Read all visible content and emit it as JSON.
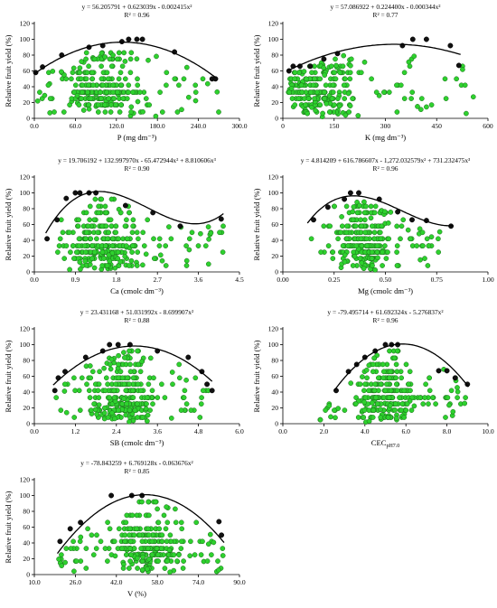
{
  "chart_data": [
    {
      "type": "scatter",
      "equation": "y = 56.205791 + 0.623039x - 0.002415x²",
      "r2": "R² = 0.96",
      "xlabel": "P (mg dm⁻³)",
      "ylabel": "Relative fruit yield (%)",
      "xlim": [
        0,
        300
      ],
      "ylim": [
        0,
        120
      ],
      "xticks": [
        "0.0",
        "60.0",
        "120.0",
        "180.0",
        "240.0",
        "300.0"
      ],
      "yticks": [
        "0",
        "20",
        "40",
        "60",
        "80",
        "100",
        "120"
      ],
      "xtick_values": [
        0,
        60,
        120,
        180,
        240,
        300
      ],
      "ytick_values": [
        0,
        20,
        40,
        60,
        80,
        100,
        120
      ],
      "coef": [
        56.205791,
        0.623039,
        -0.002415
      ],
      "curve_range": [
        0,
        265
      ],
      "green_range": [
        3,
        270
      ],
      "green_center": 95,
      "green_n": 260,
      "seed": 11,
      "boundary": [
        [
          2,
          58
        ],
        [
          12,
          65
        ],
        [
          40,
          80
        ],
        [
          80,
          90
        ],
        [
          100,
          92
        ],
        [
          128,
          97
        ],
        [
          138,
          100
        ],
        [
          150,
          100
        ],
        [
          158,
          100
        ],
        [
          205,
          84
        ],
        [
          260,
          50
        ],
        [
          265,
          50
        ]
      ]
    },
    {
      "type": "scatter",
      "equation": "y = 57.086922 + 0.224400x - 0.000344x²",
      "r2": "R² = 0.77",
      "xlabel": "K (mg dm⁻³)",
      "ylabel": "Relative fruit yield (%)",
      "xlim": [
        0,
        600
      ],
      "ylim": [
        0,
        120
      ],
      "xticks": [
        "0",
        "150",
        "300",
        "450",
        "600"
      ],
      "yticks": [
        "0",
        "20",
        "40",
        "60",
        "80",
        "100",
        "120"
      ],
      "xtick_values": [
        0,
        150,
        300,
        450,
        600
      ],
      "ytick_values": [
        0,
        20,
        40,
        60,
        80,
        100,
        120
      ],
      "coef": [
        57.086922,
        0.2244,
        -0.000344
      ],
      "curve_range": [
        15,
        520
      ],
      "green_range": [
        15,
        560
      ],
      "green_center": 110,
      "green_n": 250,
      "seed": 23,
      "boundary": [
        [
          18,
          60
        ],
        [
          30,
          66
        ],
        [
          50,
          66
        ],
        [
          80,
          66
        ],
        [
          120,
          75
        ],
        [
          160,
          82
        ],
        [
          350,
          92
        ],
        [
          380,
          100
        ],
        [
          420,
          100
        ],
        [
          490,
          92
        ],
        [
          515,
          67
        ]
      ]
    },
    {
      "type": "scatter",
      "equation": "y = 19.706192 + 132.997970x - 65.472944x² + 8.810606x³",
      "r2": "R² = 0.90",
      "xlabel": "Ca (cmolc dm⁻³)",
      "ylabel": "Relative fruit yield (%)",
      "xlim": [
        0,
        4.5
      ],
      "ylim": [
        0,
        120
      ],
      "xticks": [
        "0.0",
        "0.9",
        "1.8",
        "2.7",
        "3.6",
        "4.5"
      ],
      "yticks": [
        "0",
        "20",
        "40",
        "60",
        "80",
        "100",
        "120"
      ],
      "xtick_values": [
        0,
        0.9,
        1.8,
        2.7,
        3.6,
        4.5
      ],
      "ytick_values": [
        0,
        20,
        40,
        60,
        80,
        100,
        120
      ],
      "coef": [
        19.706192,
        132.99797,
        -65.472944,
        8.810606
      ],
      "curve_range": [
        0.25,
        4.15
      ],
      "green_range": [
        0.4,
        4.2
      ],
      "green_center": 1.5,
      "green_n": 290,
      "seed": 37,
      "boundary": [
        [
          0.28,
          42
        ],
        [
          0.5,
          66
        ],
        [
          0.7,
          93
        ],
        [
          0.9,
          100
        ],
        [
          1.0,
          100
        ],
        [
          1.2,
          100
        ],
        [
          1.35,
          100
        ],
        [
          2.0,
          84
        ],
        [
          2.6,
          75
        ],
        [
          3.2,
          58
        ],
        [
          4.1,
          67
        ]
      ]
    },
    {
      "type": "scatter",
      "equation": "y = 4.814209 + 616.786607x - 1,272.032579x² + 731.232475x³",
      "r2": "R² = 0.96",
      "xlabel": "Mg (cmolc dm⁻³)",
      "ylabel": "Relative fruit yield (%)",
      "xlim": [
        0,
        1.0
      ],
      "ylim": [
        0,
        120
      ],
      "xticks": [
        "0.00",
        "0.25",
        "0.50",
        "0.75",
        "1.00"
      ],
      "yticks": [
        "0",
        "20",
        "40",
        "60",
        "80",
        "100",
        "120"
      ],
      "xtick_values": [
        0,
        0.25,
        0.5,
        0.75,
        1.0
      ],
      "ytick_values": [
        0,
        20,
        40,
        60,
        80,
        100,
        120
      ],
      "coef": [
        4.814209,
        616.786607,
        -1272.032579,
        731.232475
      ],
      "curve_range": [
        0.12,
        0.83
      ],
      "green_range": [
        0.12,
        0.82
      ],
      "green_center": 0.4,
      "green_n": 280,
      "seed": 53,
      "boundary": [
        [
          0.15,
          66
        ],
        [
          0.22,
          82
        ],
        [
          0.3,
          92
        ],
        [
          0.33,
          100
        ],
        [
          0.37,
          100
        ],
        [
          0.47,
          92
        ],
        [
          0.56,
          76
        ],
        [
          0.63,
          66
        ],
        [
          0.7,
          65
        ],
        [
          0.82,
          58
        ]
      ]
    },
    {
      "type": "scatter",
      "equation": "y = 23.431168 + 51.031992x - 8.699907x²",
      "r2": "R² = 0.88",
      "xlabel": "SB (cmolc dm⁻³)",
      "ylabel": "Relative fruit yield (%)",
      "xlim": [
        0,
        6.0
      ],
      "ylim": [
        0,
        120
      ],
      "xticks": [
        "0.0",
        "1.2",
        "2.4",
        "3.6",
        "4.8",
        "6.0"
      ],
      "yticks": [
        "0",
        "20",
        "40",
        "60",
        "80",
        "100",
        "120"
      ],
      "xtick_values": [
        0,
        1.2,
        2.4,
        3.6,
        4.8,
        6.0
      ],
      "ytick_values": [
        0,
        20,
        40,
        60,
        80,
        100,
        120
      ],
      "coef": [
        23.431168,
        51.031992,
        -8.699907
      ],
      "curve_range": [
        0.55,
        5.2
      ],
      "green_range": [
        0.6,
        5.1
      ],
      "green_center": 2.6,
      "green_n": 290,
      "seed": 71,
      "boundary": [
        [
          0.6,
          42
        ],
        [
          0.7,
          58
        ],
        [
          0.9,
          66
        ],
        [
          1.5,
          84
        ],
        [
          2.0,
          92
        ],
        [
          2.2,
          100
        ],
        [
          2.45,
          100
        ],
        [
          2.8,
          100
        ],
        [
          3.6,
          92
        ],
        [
          4.5,
          84
        ],
        [
          4.9,
          66
        ],
        [
          5.05,
          50
        ],
        [
          5.2,
          42
        ]
      ]
    },
    {
      "type": "scatter",
      "equation": "y = -79.495714 + 61.692324x - 5.276837x²",
      "r2": "R² = 0.96",
      "xlabel": "CEC",
      "xlabel_sub": "pH7.0",
      "ylabel": "Relative fruit yield (%)",
      "xlim": [
        0,
        10.0
      ],
      "ylim": [
        0,
        120
      ],
      "xticks": [
        "0.0",
        "2.0",
        "4.0",
        "6.0",
        "8.0",
        "10.0"
      ],
      "yticks": [
        "0",
        "20",
        "40",
        "60",
        "80",
        "100",
        "120"
      ],
      "xtick_values": [
        0,
        2,
        4,
        6,
        8,
        10
      ],
      "ytick_values": [
        0,
        20,
        40,
        60,
        80,
        100,
        120
      ],
      "coef": [
        -79.495714,
        61.692324,
        -5.276837
      ],
      "curve_range": [
        2.5,
        9.05
      ],
      "green_range": [
        1.8,
        9.0
      ],
      "green_center": 5.0,
      "green_n": 270,
      "seed": 89,
      "boundary": [
        [
          2.6,
          42
        ],
        [
          3.2,
          66
        ],
        [
          3.6,
          75
        ],
        [
          4.0,
          84
        ],
        [
          4.5,
          92
        ],
        [
          5.0,
          100
        ],
        [
          5.3,
          100
        ],
        [
          5.6,
          100
        ],
        [
          7.6,
          67
        ],
        [
          8.0,
          67
        ],
        [
          8.4,
          58
        ],
        [
          9.0,
          50
        ]
      ]
    },
    {
      "type": "scatter",
      "equation": "y = -78.843259 + 6.769128x - 0.063676x²",
      "r2": "R² = 0.85",
      "xlabel": "V (%)",
      "ylabel": "Relative fruit yield (%)",
      "xlim": [
        10,
        90
      ],
      "ylim": [
        0,
        120
      ],
      "xticks": [
        "10.0",
        "26.0",
        "42.0",
        "58.0",
        "74.0",
        "90.0"
      ],
      "yticks": [
        "0",
        "20",
        "40",
        "60",
        "80",
        "100",
        "120"
      ],
      "xtick_values": [
        10,
        26,
        42,
        58,
        74,
        90
      ],
      "ytick_values": [
        0,
        20,
        40,
        60,
        80,
        100,
        120
      ],
      "coef": [
        -78.843259,
        6.769128,
        -0.063676
      ],
      "curve_range": [
        19,
        84
      ],
      "green_range": [
        18,
        84
      ],
      "green_center": 55,
      "green_n": 290,
      "seed": 101,
      "boundary": [
        [
          20,
          42
        ],
        [
          24,
          58
        ],
        [
          28,
          66
        ],
        [
          40,
          100
        ],
        [
          48,
          100
        ],
        [
          52,
          100
        ],
        [
          82,
          67
        ],
        [
          83,
          50
        ]
      ]
    }
  ]
}
